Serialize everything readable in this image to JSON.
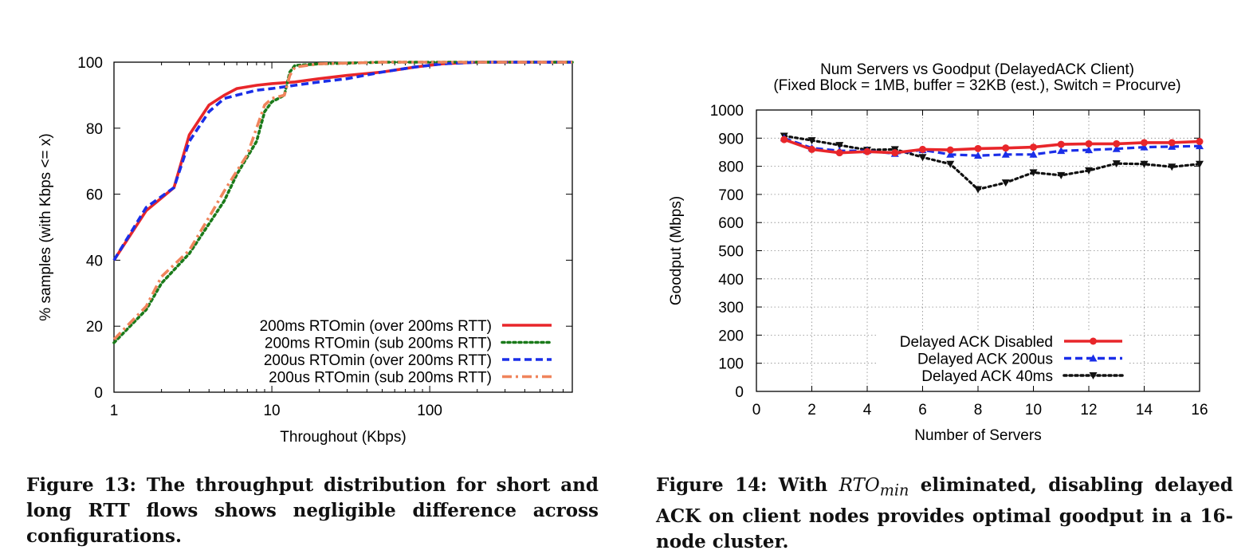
{
  "colors": {
    "series13": [
      "#e8262a",
      "#1a7a1a",
      "#1a2ee8",
      "#f0845c"
    ],
    "series14": [
      "#e8262a",
      "#1a2ee8",
      "#111111"
    ]
  },
  "captions": {
    "fig13": "Figure 13: The throughput distribution for short and long RTT flows shows negligible difference across configurations.",
    "fig14_pre": "Figure 14: With ",
    "fig14_math": "RTO",
    "fig14_sub": "min",
    "fig14_post": " eliminated, disabling delayed ACK on client nodes provides optimal goodput in a 16-node cluster."
  },
  "chart_data": [
    {
      "type": "line",
      "title": "",
      "xlabel": "Throughout (Kbps)",
      "ylabel": "% samples (with Kbps <= x)",
      "xscale": "log",
      "xlim": [
        1,
        800
      ],
      "ylim": [
        0,
        100
      ],
      "xticks": [
        1,
        10,
        100
      ],
      "xtick_labels": [
        "1",
        "10",
        "100"
      ],
      "yticks": [
        0,
        20,
        40,
        60,
        80,
        100
      ],
      "ytick_labels": [
        "0",
        "20",
        "40",
        "60",
        "80",
        "100"
      ],
      "grid": false,
      "legend_position": "bottom-right",
      "series": [
        {
          "name": "200ms RTOmin (over 200ms RTT)",
          "style": "solid",
          "x": [
            1,
            1.6,
            2.4,
            3,
            4,
            5,
            6,
            8,
            10,
            14,
            20,
            30,
            50,
            80,
            120,
            200,
            800
          ],
          "y": [
            40,
            55,
            62,
            78,
            87,
            90,
            92,
            93,
            93.5,
            94,
            95,
            96,
            97,
            98.5,
            99.5,
            100,
            100
          ]
        },
        {
          "name": "200ms RTOmin (sub 200ms RTT)",
          "style": "dotted",
          "x": [
            1,
            1.6,
            2,
            3,
            4,
            5,
            6,
            8,
            9,
            10,
            11,
            12,
            13,
            14,
            20,
            50,
            100,
            800
          ],
          "y": [
            15,
            25,
            33,
            42,
            51,
            58,
            66,
            76,
            85,
            88,
            89,
            90,
            97,
            99,
            99.5,
            100,
            100,
            100
          ]
        },
        {
          "name": "200us RTOmin (over 200ms RTT)",
          "style": "dashed",
          "x": [
            1,
            1.6,
            2.4,
            3,
            4,
            5,
            6,
            8,
            10,
            14,
            20,
            30,
            50,
            80,
            120,
            200,
            800
          ],
          "y": [
            40,
            56,
            62,
            76,
            85,
            89,
            90,
            91.5,
            92,
            93,
            94,
            95,
            97,
            98.5,
            99.5,
            100,
            100
          ]
        },
        {
          "name": "200us RTOmin (sub 200ms RTT)",
          "style": "dashdot",
          "x": [
            1,
            1.6,
            2,
            3,
            4,
            5,
            6,
            7,
            8,
            9,
            10,
            12,
            13,
            14,
            20,
            50,
            100,
            800
          ],
          "y": [
            16,
            26,
            35,
            43,
            53,
            61,
            67,
            72,
            80,
            87,
            89,
            90,
            96,
            98.5,
            99.5,
            100,
            100,
            100
          ]
        }
      ]
    },
    {
      "type": "line",
      "title": "Num Servers vs Goodput (DelayedACK Client)",
      "subtitle": "(Fixed Block = 1MB, buffer = 32KB (est.), Switch = Procurve)",
      "xlabel": "Number of Servers",
      "ylabel": "Goodput (Mbps)",
      "xlim": [
        0,
        16
      ],
      "ylim": [
        0,
        1000
      ],
      "xticks": [
        0,
        2,
        4,
        6,
        8,
        10,
        12,
        14,
        16
      ],
      "xtick_labels": [
        "0",
        "2",
        "4",
        "6",
        "8",
        "10",
        "12",
        "14",
        "16"
      ],
      "yticks": [
        0,
        100,
        200,
        300,
        400,
        500,
        600,
        700,
        800,
        900,
        1000
      ],
      "ytick_labels": [
        "0",
        "100",
        "200",
        "300",
        "400",
        "500",
        "600",
        "700",
        "800",
        "900",
        "1000"
      ],
      "grid": true,
      "legend_position": "bottom-center",
      "x": [
        1,
        2,
        3,
        4,
        5,
        6,
        7,
        8,
        9,
        10,
        11,
        12,
        13,
        14,
        15,
        16
      ],
      "series": [
        {
          "name": "Delayed ACK Disabled",
          "style": "solid",
          "marker": "circle",
          "values": [
            895,
            860,
            848,
            852,
            848,
            860,
            858,
            863,
            865,
            868,
            878,
            880,
            880,
            884,
            884,
            888
          ]
        },
        {
          "name": "Delayed ACK 200us",
          "style": "dashed",
          "marker": "triangle-up",
          "values": [
            900,
            865,
            855,
            855,
            845,
            858,
            842,
            838,
            842,
            842,
            855,
            858,
            862,
            868,
            870,
            872
          ]
        },
        {
          "name": "Delayed ACK 40ms",
          "style": "dotted",
          "marker": "triangle-down",
          "values": [
            908,
            892,
            875,
            858,
            860,
            832,
            808,
            718,
            742,
            778,
            768,
            785,
            810,
            808,
            798,
            808
          ]
        }
      ]
    }
  ]
}
